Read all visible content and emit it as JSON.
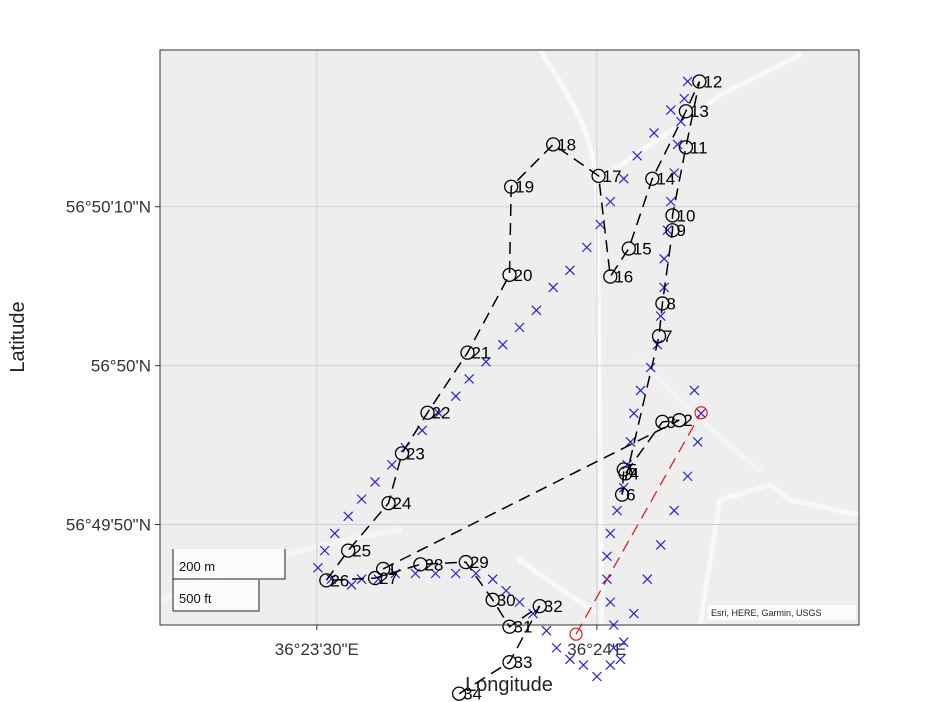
{
  "map": {
    "xlabel": "Longitude",
    "ylabel": "Latitude",
    "x_ticks": [
      {
        "value": 36.391667,
        "label": "36°23'30\"E"
      },
      {
        "value": 36.4,
        "label": "36°24'E"
      }
    ],
    "y_ticks": [
      {
        "value": 56.836111,
        "label": "56°50'10\"N"
      },
      {
        "value": 56.833333,
        "label": "56°50'N"
      },
      {
        "value": 56.830556,
        "label": "56°49'50\"N"
      }
    ],
    "xlim": [
      36.387,
      36.4078
    ],
    "ylim": [
      56.8288,
      56.83885
    ],
    "attribution": "Esri, HERE, Garmin, USGS",
    "scale_bar": {
      "metric": "200 m",
      "imperial": "500 ft"
    },
    "colors": {
      "panel": "#eeeeee",
      "grid": "#d0d0d0",
      "roads": "#fafafa",
      "waypoint": "#000000",
      "track": "#2222dd",
      "reference": "#e02020"
    }
  },
  "waypoints": [
    {
      "id": "1",
      "lon": 36.39364,
      "lat": 56.82978
    },
    {
      "id": "2",
      "lon": 36.40245,
      "lat": 56.83238
    },
    {
      "id": "3",
      "lon": 36.40195,
      "lat": 56.83235
    },
    {
      "id": "4",
      "lon": 36.40085,
      "lat": 56.83145
    },
    {
      "id": "5",
      "lon": 36.4008,
      "lat": 56.83152
    },
    {
      "id": "6",
      "lon": 36.40075,
      "lat": 56.83108
    },
    {
      "id": "7",
      "lon": 36.40185,
      "lat": 56.83385
    },
    {
      "id": "8",
      "lon": 36.40195,
      "lat": 56.83442
    },
    {
      "id": "9",
      "lon": 36.40225,
      "lat": 56.8357
    },
    {
      "id": "10",
      "lon": 36.40225,
      "lat": 56.83596
    },
    {
      "id": "11",
      "lon": 36.40265,
      "lat": 56.83715
    },
    {
      "id": "12",
      "lon": 36.40305,
      "lat": 56.8383
    },
    {
      "id": "13",
      "lon": 36.40265,
      "lat": 56.83778
    },
    {
      "id": "14",
      "lon": 36.40165,
      "lat": 56.8366
    },
    {
      "id": "15",
      "lon": 36.40095,
      "lat": 56.83538
    },
    {
      "id": "16",
      "lon": 36.4004,
      "lat": 56.83489
    },
    {
      "id": "17",
      "lon": 36.40005,
      "lat": 56.83665
    },
    {
      "id": "18",
      "lon": 36.3987,
      "lat": 56.8372
    },
    {
      "id": "19",
      "lon": 36.39745,
      "lat": 56.83646
    },
    {
      "id": "20",
      "lon": 36.3974,
      "lat": 56.83492
    },
    {
      "id": "21",
      "lon": 36.39615,
      "lat": 56.83356
    },
    {
      "id": "22",
      "lon": 36.39496,
      "lat": 56.83251
    },
    {
      "id": "23",
      "lon": 36.3942,
      "lat": 56.8318
    },
    {
      "id": "24",
      "lon": 36.3938,
      "lat": 56.83093
    },
    {
      "id": "25",
      "lon": 36.3926,
      "lat": 56.8301
    },
    {
      "id": "26",
      "lon": 36.39195,
      "lat": 56.82958
    },
    {
      "id": "27",
      "lon": 36.3934,
      "lat": 56.82962
    },
    {
      "id": "28",
      "lon": 36.39475,
      "lat": 56.82986
    },
    {
      "id": "29",
      "lon": 36.3961,
      "lat": 56.8299
    },
    {
      "id": "30",
      "lon": 36.3969,
      "lat": 56.82924
    },
    {
      "id": "31",
      "lon": 36.3974,
      "lat": 56.82877
    },
    {
      "id": "32",
      "lon": 36.3983,
      "lat": 56.82913
    },
    {
      "id": "33",
      "lon": 36.3974,
      "lat": 56.82815
    },
    {
      "id": "34",
      "lon": 36.3959,
      "lat": 56.8276
    }
  ],
  "track": [
    [
      36.393,
      56.8296
    ],
    [
      36.3935,
      56.8296
    ],
    [
      36.394,
      56.8297
    ],
    [
      36.3946,
      56.8297
    ],
    [
      36.3952,
      56.8297
    ],
    [
      36.3958,
      56.8297
    ],
    [
      36.3964,
      56.8297
    ],
    [
      36.3969,
      56.8296
    ],
    [
      36.3973,
      56.8294
    ],
    [
      36.3977,
      56.8292
    ],
    [
      36.3981,
      56.829
    ],
    [
      36.3985,
      56.8287
    ],
    [
      36.3988,
      56.8284
    ],
    [
      36.3992,
      56.8282
    ],
    [
      36.3996,
      56.8281
    ],
    [
      36.4,
      56.8279
    ],
    [
      36.4004,
      56.8281
    ],
    [
      36.4005,
      56.8284
    ],
    [
      36.4005,
      56.8288
    ],
    [
      36.4004,
      56.8292
    ],
    [
      36.4003,
      56.8296
    ],
    [
      36.4003,
      56.83
    ],
    [
      36.4004,
      56.8304
    ],
    [
      36.4006,
      56.8308
    ],
    [
      36.4008,
      56.8312
    ],
    [
      36.4009,
      56.8316
    ],
    [
      36.401,
      56.832
    ],
    [
      36.4011,
      56.8325
    ],
    [
      36.4013,
      56.8329
    ],
    [
      36.4016,
      56.8333
    ],
    [
      36.4018,
      56.8337
    ],
    [
      36.4019,
      56.8342
    ],
    [
      36.402,
      56.8347
    ],
    [
      36.402,
      56.8352
    ],
    [
      36.4021,
      56.8357
    ],
    [
      36.4022,
      56.8362
    ],
    [
      36.4023,
      56.8367
    ],
    [
      36.4024,
      56.8372
    ],
    [
      36.4025,
      56.8376
    ],
    [
      36.4026,
      56.838
    ],
    [
      36.4027,
      56.8383
    ],
    [
      36.4022,
      56.8378
    ],
    [
      36.4017,
      56.8374
    ],
    [
      36.4012,
      56.837
    ],
    [
      36.4008,
      56.8366
    ],
    [
      36.4004,
      56.8362
    ],
    [
      36.4001,
      56.8358
    ],
    [
      36.3997,
      56.8354
    ],
    [
      36.3992,
      56.835
    ],
    [
      36.3987,
      56.8347
    ],
    [
      36.3982,
      56.8343
    ],
    [
      36.3977,
      56.834
    ],
    [
      36.3972,
      56.8337
    ],
    [
      36.3967,
      56.8334
    ],
    [
      36.3962,
      56.8331
    ],
    [
      36.3958,
      56.8328
    ],
    [
      36.3953,
      56.8325
    ],
    [
      36.3948,
      56.8322
    ],
    [
      36.3943,
      56.8319
    ],
    [
      36.3939,
      56.8316
    ],
    [
      36.3934,
      56.8313
    ],
    [
      36.393,
      56.831
    ],
    [
      36.3926,
      56.8307
    ],
    [
      36.3922,
      56.8304
    ],
    [
      36.3919,
      56.8301
    ],
    [
      36.3917,
      56.8298
    ],
    [
      36.3921,
      56.8296
    ],
    [
      36.3927,
      56.8295
    ],
    [
      36.4029,
      56.8329
    ],
    [
      36.4031,
      56.8325
    ],
    [
      36.403,
      56.832
    ],
    [
      36.4027,
      56.8314
    ],
    [
      36.4023,
      56.8308
    ],
    [
      36.4019,
      56.8302
    ],
    [
      36.4015,
      56.8296
    ],
    [
      36.4011,
      56.829
    ],
    [
      36.4008,
      56.8285
    ],
    [
      36.4007,
      56.8282
    ]
  ],
  "reference_line": [
    [
      36.39938,
      56.82864
    ],
    [
      36.4031,
      56.83251
    ]
  ]
}
